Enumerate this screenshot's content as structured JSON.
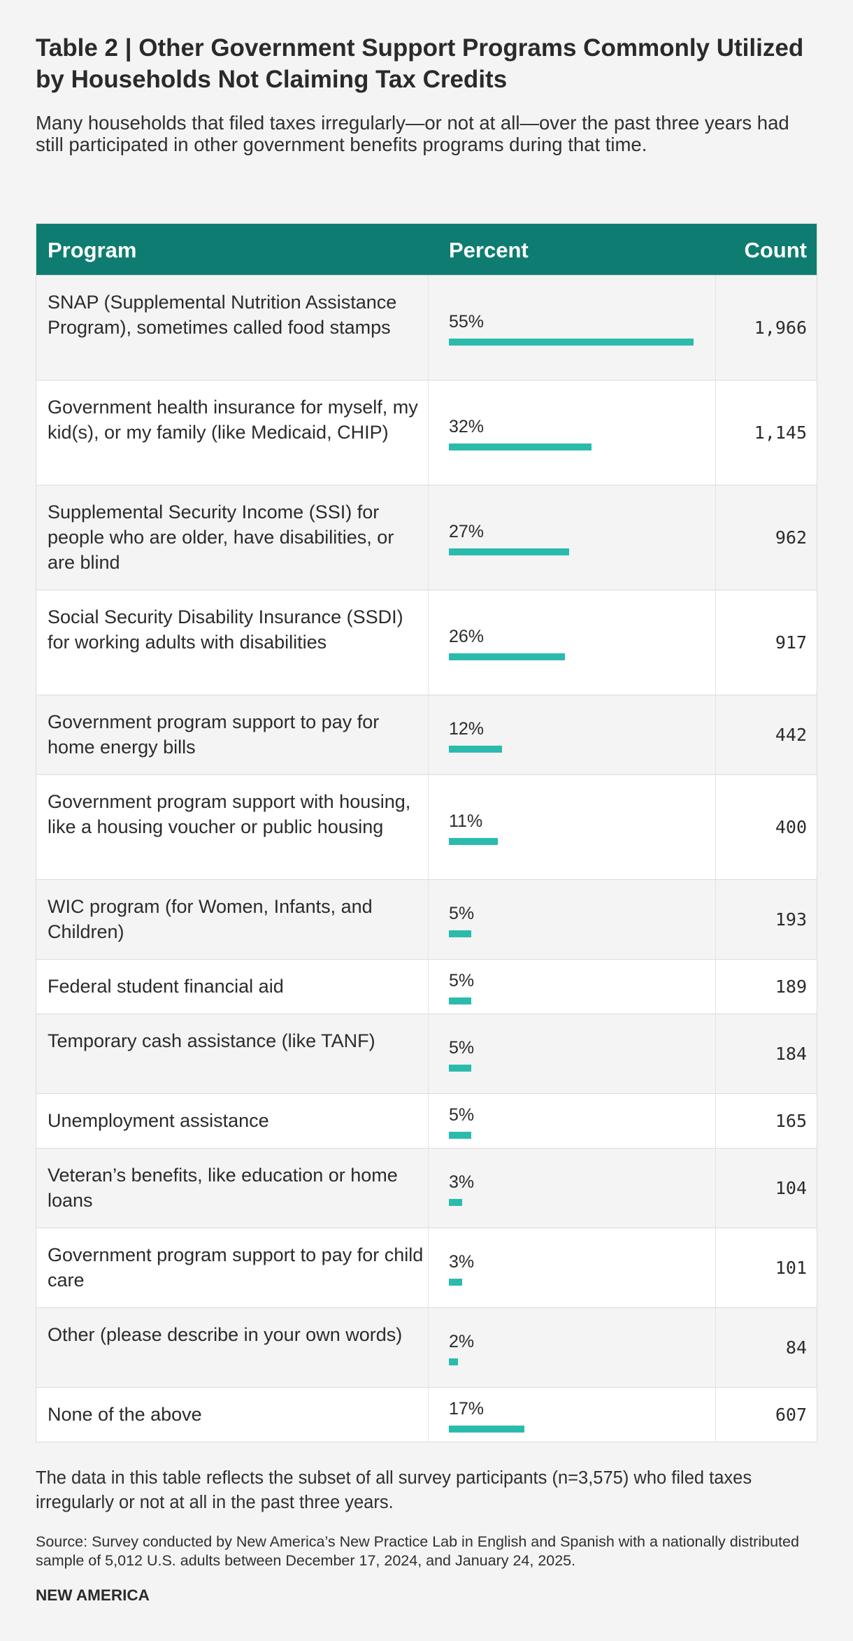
{
  "title": "Table 2 | Other Government Support Programs Commonly Utilized by Households Not Claiming Tax Credits",
  "subtitle": "Many households that filed taxes irregularly—or not at all—over the past three years had still participated in other government benefits programs during that time.",
  "columns": {
    "program": "Program",
    "percent": "Percent",
    "count": "Count"
  },
  "colors": {
    "header": "#0e7c71",
    "bar": "#2bbbad"
  },
  "chart_data": {
    "type": "table",
    "title": "Table 2 | Other Government Support Programs Commonly Utilized by Households Not Claiming Tax Credits",
    "columns": [
      "Program",
      "Percent",
      "Count"
    ],
    "rows": [
      {
        "program": "SNAP (Supplemental Nutrition Assistance Program), sometimes called food stamps",
        "percent": 55,
        "percent_label": "55%",
        "count": "1,966"
      },
      {
        "program": "Government health insurance for myself, my kid(s), or my family (like Medicaid, CHIP)",
        "percent": 32,
        "percent_label": "32%",
        "count": "1,145"
      },
      {
        "program": "Supplemental Security Income (SSI) for people who are older, have disabilities, or are blind",
        "percent": 27,
        "percent_label": "27%",
        "count": "962"
      },
      {
        "program": "Social Security Disability Insurance (SSDI) for working adults with disabilities",
        "percent": 26,
        "percent_label": "26%",
        "count": "917"
      },
      {
        "program": "Government program support to pay for home energy bills",
        "percent": 12,
        "percent_label": "12%",
        "count": "442"
      },
      {
        "program": "Government program support with housing, like a housing voucher or public housing",
        "percent": 11,
        "percent_label": "11%",
        "count": "400"
      },
      {
        "program": "WIC program (for Women, Infants, and Children)",
        "percent": 5,
        "percent_label": "5%",
        "count": "193"
      },
      {
        "program": "Federal student financial aid",
        "percent": 5,
        "percent_label": "5%",
        "count": "189"
      },
      {
        "program": "Temporary cash assistance (like TANF)",
        "percent": 5,
        "percent_label": "5%",
        "count": "184"
      },
      {
        "program": "Unemployment assistance",
        "percent": 5,
        "percent_label": "5%",
        "count": "165"
      },
      {
        "program": "Veteran’s benefits, like education or home loans",
        "percent": 3,
        "percent_label": "3%",
        "count": "104"
      },
      {
        "program": "Government program support to pay for child care",
        "percent": 3,
        "percent_label": "3%",
        "count": "101"
      },
      {
        "program": "Other (please describe in your own words)",
        "percent": 2,
        "percent_label": "2%",
        "count": "84"
      },
      {
        "program": "None of the above",
        "percent": 17,
        "percent_label": "17%",
        "count": "607"
      }
    ]
  },
  "note": "The data in this table reflects the subset of all survey participants (n=3,575) who filed taxes irregularly or not at all in the past three years.",
  "source": "Source: Survey conducted by New America’s New Practice Lab in English and Spanish with a nationally distributed sample of 5,012 U.S. adults between December 17, 2024, and January 24, 2025.",
  "brand": "NEW AMERICA"
}
